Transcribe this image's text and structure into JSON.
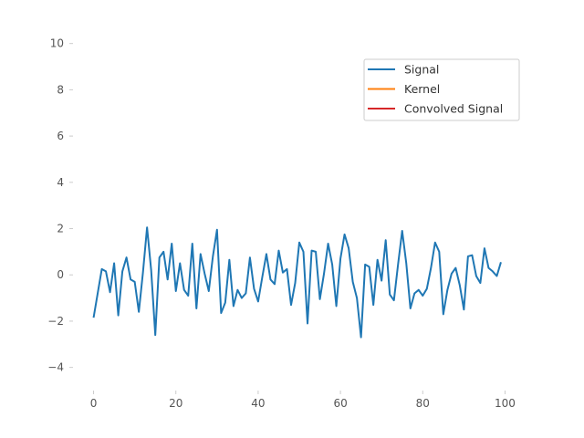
{
  "chart_data": {
    "type": "line",
    "title": "",
    "xlabel": "",
    "ylabel": "",
    "xlim": [
      -5,
      105
    ],
    "ylim": [
      -5,
      10.5
    ],
    "xticks": [
      0,
      20,
      40,
      60,
      80,
      100
    ],
    "yticks": [
      -4,
      -2,
      0,
      2,
      4,
      6,
      8,
      10
    ],
    "grid": false,
    "legend_position": "top-right",
    "series": [
      {
        "name": "Signal",
        "color": "#1f77b4",
        "x": [
          0,
          1,
          2,
          3,
          4,
          5,
          6,
          7,
          8,
          9,
          10,
          11,
          12,
          13,
          14,
          15,
          16,
          17,
          18,
          19,
          20,
          21,
          22,
          23,
          24,
          25,
          26,
          27,
          28,
          29,
          30,
          31,
          32,
          33,
          34,
          35,
          36,
          37,
          38,
          39,
          40,
          41,
          42,
          43,
          44,
          45,
          46,
          47,
          48,
          49,
          50,
          51,
          52,
          53,
          54,
          55,
          56,
          57,
          58,
          59,
          60,
          61,
          62,
          63,
          64,
          65,
          66,
          67,
          68,
          69,
          70,
          71,
          72,
          73,
          74,
          75,
          76,
          77,
          78,
          79,
          80,
          81,
          82,
          83,
          84,
          85,
          86,
          87,
          88,
          89,
          90,
          91,
          92,
          93,
          94,
          95,
          96,
          97,
          98,
          99
        ],
        "values": [
          -1.85,
          -0.8,
          0.25,
          0.15,
          -0.75,
          0.5,
          -1.75,
          0.15,
          0.75,
          -0.2,
          -0.3,
          -1.6,
          0.1,
          2.05,
          0.2,
          -2.6,
          0.75,
          1.0,
          -0.2,
          1.35,
          -0.7,
          0.5,
          -0.65,
          -0.9,
          1.35,
          -1.45,
          0.9,
          0.05,
          -0.7,
          0.8,
          1.95,
          -1.65,
          -1.2,
          0.65,
          -1.35,
          -0.65,
          -1.0,
          -0.8,
          0.75,
          -0.6,
          -1.15,
          -0.1,
          0.9,
          -0.2,
          -0.4,
          1.05,
          0.1,
          0.25,
          -1.3,
          -0.35,
          1.4,
          1.0,
          -2.1,
          1.05,
          1.0,
          -1.05,
          0.05,
          1.35,
          0.45,
          -1.35,
          0.7,
          1.75,
          1.15,
          -0.3,
          -1.0,
          -2.7,
          0.45,
          0.35,
          -1.3,
          0.65,
          -0.25,
          1.5,
          -0.85,
          -1.1,
          0.45,
          1.9,
          0.5,
          -1.45,
          -0.8,
          -0.65,
          -0.9,
          -0.6,
          0.3,
          1.4,
          1.0,
          -1.7,
          -0.65,
          0.05,
          0.3,
          -0.45,
          -1.5,
          0.8,
          0.85,
          -0.05,
          -0.35,
          1.15,
          0.3,
          0.15,
          -0.05,
          0.55
        ]
      },
      {
        "name": "Kernel",
        "color": "#ff7f0e",
        "values": []
      },
      {
        "name": "Convolved Signal",
        "color": "#d62728",
        "values": []
      }
    ]
  }
}
